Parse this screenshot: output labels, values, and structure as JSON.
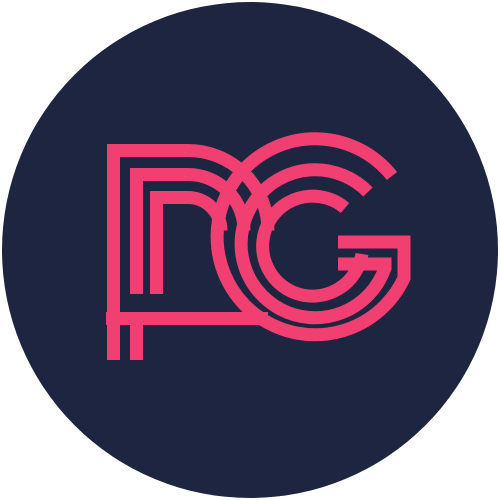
{
  "logo": {
    "monogram_text": "PG",
    "icon": "pg-monogram-logo",
    "background_color": "#1E2540",
    "stroke_color": "#F23F72",
    "page_background": "#FFFFFF"
  }
}
